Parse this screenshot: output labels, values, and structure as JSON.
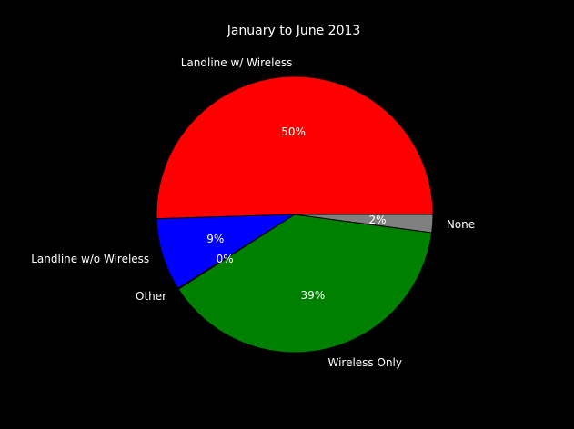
{
  "chart_data": {
    "type": "pie",
    "title": "January to June 2013",
    "slices": [
      {
        "label": "Landline w/ Wireless",
        "value": 50.5,
        "pct_label": "50%",
        "color": "#ff0000"
      },
      {
        "label": "Landline w/o Wireless",
        "value": 8.5,
        "pct_label": "9%",
        "color": "#0000ff"
      },
      {
        "label": "Other",
        "value": 0.1,
        "pct_label": "0%",
        "color": "#ffffff"
      },
      {
        "label": "Wireless Only",
        "value": 38.8,
        "pct_label": "39%",
        "color": "#008000"
      },
      {
        "label": "None",
        "value": 2.1,
        "pct_label": "2%",
        "color": "#808080"
      }
    ],
    "start_angle_deg": 0,
    "direction": "counterclockwise"
  }
}
